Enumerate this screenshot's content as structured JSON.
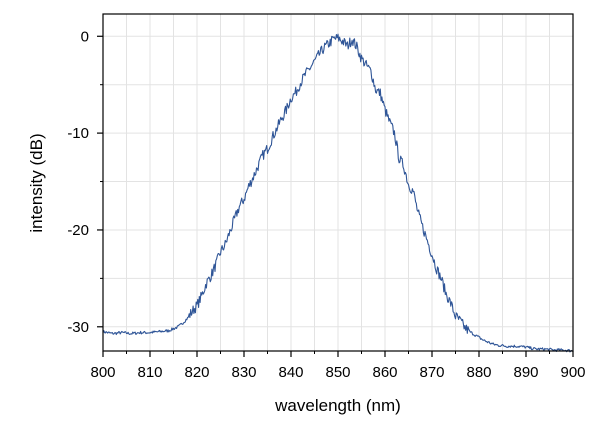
{
  "chart_data": {
    "type": "line",
    "title": "",
    "xlabel": "wavelength (nm)",
    "ylabel": "intensity (dB)",
    "xlim": [
      800,
      900
    ],
    "ylim": [
      -32.5,
      2.3
    ],
    "xticks": [
      800,
      810,
      820,
      830,
      840,
      850,
      860,
      870,
      880,
      890,
      900
    ],
    "yticks": [
      0,
      -10,
      -20,
      -30
    ],
    "grid": true,
    "colors": {
      "line": "#2f5597",
      "grid": "#e3e3e3",
      "axis": "#000000"
    },
    "series": [
      {
        "x": [
          800,
          802,
          804,
          806,
          808,
          810,
          812,
          814,
          815,
          816,
          817,
          818,
          819,
          820,
          821,
          822,
          823,
          824,
          825,
          826,
          827,
          828,
          829,
          830,
          831,
          832,
          833,
          834,
          835,
          836,
          837,
          838,
          839,
          840,
          841,
          842,
          843,
          844,
          845,
          846,
          847,
          848,
          849,
          850,
          851,
          852,
          853,
          854,
          855,
          856,
          857,
          858,
          859,
          860,
          861,
          862,
          863,
          864,
          865,
          866,
          867,
          868,
          869,
          870,
          871,
          872,
          873,
          874,
          875,
          876,
          877,
          878,
          879,
          880,
          881,
          882,
          883,
          884,
          886,
          888,
          890,
          892,
          894,
          896,
          898,
          900
        ],
        "y": [
          -30.5,
          -30.7,
          -30.6,
          -30.7,
          -30.6,
          -30.6,
          -30.5,
          -30.4,
          -30.2,
          -30.0,
          -29.6,
          -29.1,
          -28.4,
          -27.8,
          -26.8,
          -25.5,
          -24.7,
          -23.6,
          -22.3,
          -21.5,
          -20.2,
          -18.9,
          -17.6,
          -16.8,
          -15.5,
          -14.5,
          -13.4,
          -12.3,
          -11.6,
          -10.5,
          -9.5,
          -8.5,
          -7.6,
          -6.4,
          -5.8,
          -4.8,
          -4.0,
          -3.3,
          -2.6,
          -1.9,
          -1.2,
          -0.8,
          -0.3,
          -0.2,
          -0.5,
          -1.0,
          -0.3,
          -1.1,
          -2.3,
          -3.0,
          -3.6,
          -5.5,
          -5.9,
          -7.6,
          -8.9,
          -10.0,
          -12.6,
          -13.4,
          -15.3,
          -16.0,
          -18.2,
          -19.7,
          -21.1,
          -22.5,
          -24.0,
          -25.1,
          -26.6,
          -27.6,
          -28.9,
          -29.4,
          -30.1,
          -30.5,
          -30.8,
          -31.1,
          -31.4,
          -31.6,
          -31.8,
          -31.9,
          -32.0,
          -32.0,
          -32.1,
          -32.3,
          -32.3,
          -32.4,
          -32.4,
          -32.5
        ]
      }
    ]
  }
}
